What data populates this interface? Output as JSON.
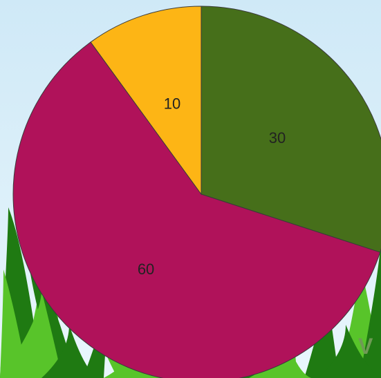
{
  "chart_data": {
    "type": "pie",
    "title": "",
    "start_angle_deg": 0,
    "direction": "clockwise",
    "slices": [
      {
        "label": "30",
        "value": 30,
        "color": "#466f1a"
      },
      {
        "label": "60",
        "value": 60,
        "color": "#b0125a"
      },
      {
        "label": "10",
        "value": 10,
        "color": "#fdb515"
      }
    ],
    "slice_border_color": "#3a3a3a",
    "legend": "none"
  },
  "background": {
    "sky_top": "#cfe9f7",
    "sky_bottom": "#e9f6fc",
    "grass_dark": "#1f7a12",
    "grass_light": "#58c42a"
  }
}
